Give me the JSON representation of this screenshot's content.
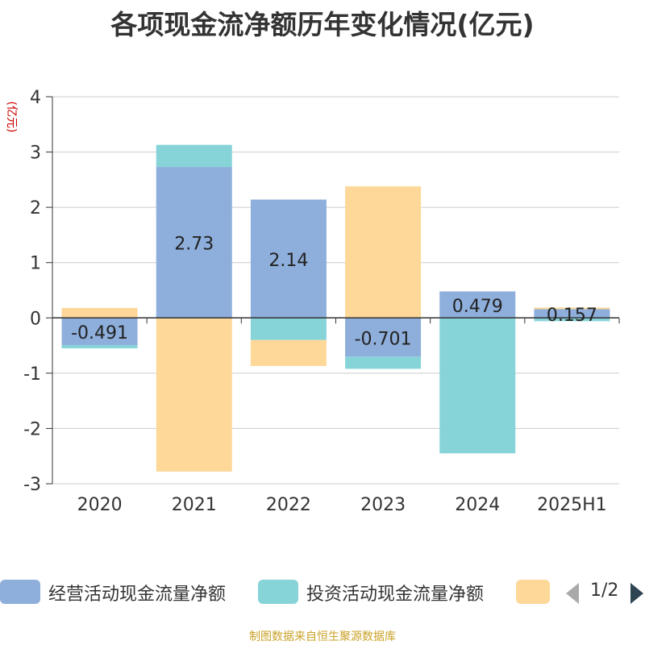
{
  "title": "各项现金流净额历年变化情况(亿元)",
  "source_note": "制图数据来自恒生聚源数据库",
  "legend": {
    "items": [
      {
        "label": "经营活动现金流量净额",
        "color": "#8eaedb"
      },
      {
        "label": "投资活动现金流量净额",
        "color": "#87d4d8"
      },
      {
        "label": "",
        "color": "#fdd899"
      }
    ],
    "page_indicator": "1/2"
  },
  "chart_data": {
    "type": "bar",
    "stacked": true,
    "categories": [
      "2020",
      "2021",
      "2022",
      "2023",
      "2024",
      "2025H1"
    ],
    "ylabel": "(亿元)",
    "ylim": [
      -3,
      4
    ],
    "yticks": [
      4,
      3,
      2,
      1,
      0,
      -1,
      -2,
      -3
    ],
    "grid": true,
    "legend_position": "bottom",
    "series": [
      {
        "name": "经营活动现金流量净额",
        "color": "#8eaedb",
        "values": [
          -0.491,
          2.73,
          2.14,
          -0.701,
          0.479,
          0.157
        ],
        "labels": [
          "-0.491",
          "2.73",
          "2.14",
          "-0.701",
          "0.479",
          "0.157"
        ]
      },
      {
        "name": "投资活动现金流量净额",
        "color": "#87d4d8",
        "values": [
          -0.06,
          0.4,
          -0.4,
          -0.22,
          -2.45,
          -0.06
        ]
      },
      {
        "color": "#fdd899",
        "values": [
          0.18,
          -2.78,
          -0.47,
          2.38,
          0.0,
          0.03
        ]
      }
    ]
  }
}
